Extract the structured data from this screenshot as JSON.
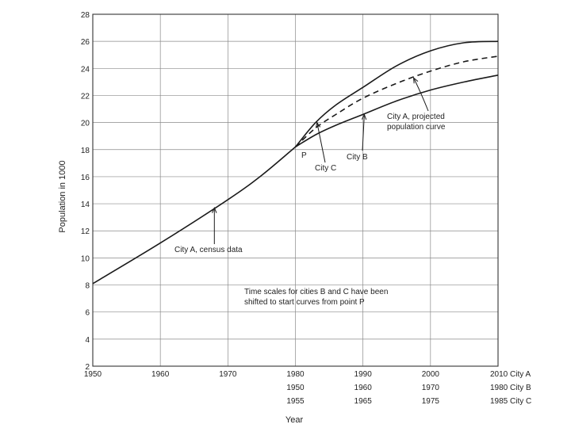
{
  "chart_data": {
    "type": "line",
    "title": "",
    "xlabel": "Year",
    "ylabel": "Population in 1000",
    "xlim": [
      1950,
      2010
    ],
    "ylim": [
      2,
      28
    ],
    "y_ticks": [
      2,
      4,
      6,
      8,
      10,
      12,
      14,
      16,
      18,
      20,
      22,
      24,
      26,
      28
    ],
    "x_ticks_cityA": [
      1950,
      1960,
      1970,
      1980,
      1990,
      2000,
      2010
    ],
    "x_tick_rows": [
      {
        "x": 1980,
        "labels": [
          "1980",
          "1950",
          "1955"
        ]
      },
      {
        "x": 1990,
        "labels": [
          "1990",
          "1960",
          "1965"
        ]
      },
      {
        "x": 2000,
        "labels": [
          "2000",
          "1970",
          "1975"
        ]
      },
      {
        "x": 2010,
        "labels": [
          "2010 City A",
          "1980 City B",
          "1985 City C"
        ]
      }
    ],
    "series": [
      {
        "name": "City A, census data",
        "style": "solid",
        "points": [
          [
            1950,
            8.1
          ],
          [
            1960,
            11.1
          ],
          [
            1970,
            14.3
          ],
          [
            1975,
            16.1
          ],
          [
            1980,
            18.2
          ]
        ]
      },
      {
        "name": "City A, projected population curve",
        "style": "dashed",
        "points": [
          [
            1980,
            18.2
          ],
          [
            1983,
            19.6
          ],
          [
            1986,
            20.6
          ],
          [
            1990,
            21.8
          ],
          [
            1995,
            22.9
          ],
          [
            2000,
            23.8
          ],
          [
            2005,
            24.5
          ],
          [
            2010,
            24.9
          ]
        ]
      },
      {
        "name": "City B",
        "style": "solid",
        "points": [
          [
            1980,
            18.2
          ],
          [
            1983,
            19.1
          ],
          [
            1986,
            19.8
          ],
          [
            1990,
            20.6
          ],
          [
            1995,
            21.6
          ],
          [
            2000,
            22.4
          ],
          [
            2005,
            23.0
          ],
          [
            2010,
            23.5
          ]
        ]
      },
      {
        "name": "City C",
        "style": "solid",
        "points": [
          [
            1980,
            18.2
          ],
          [
            1983,
            20.0
          ],
          [
            1986,
            21.3
          ],
          [
            1990,
            22.6
          ],
          [
            1995,
            24.2
          ],
          [
            2000,
            25.3
          ],
          [
            2005,
            25.9
          ],
          [
            2010,
            26.0
          ]
        ]
      }
    ],
    "annotations": {
      "point_p": "P",
      "city_a_census": "City A, census data",
      "city_a_projected_1": "City A, projected",
      "city_a_projected_2": "population curve",
      "city_b": "City B",
      "city_c": "City C",
      "note_1": "Time scales for cities B and C have been",
      "note_2": "shifted to start curves from point P"
    }
  }
}
